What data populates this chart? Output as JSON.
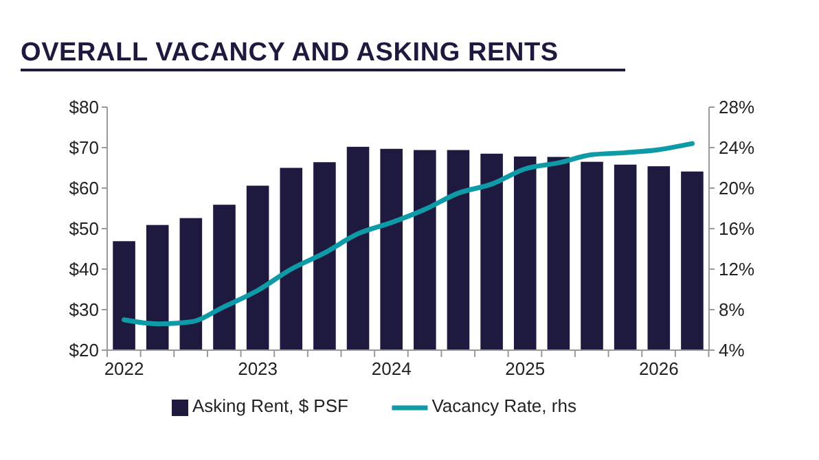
{
  "chart_data": {
    "type": "bar",
    "title": "OVERALL VACANCY AND ASKING RENTS",
    "categories": [
      "2022",
      null,
      null,
      null,
      "2023",
      null,
      null,
      null,
      "2024",
      null,
      null,
      null,
      "2025",
      null,
      null,
      null,
      "2026",
      null
    ],
    "series": [
      {
        "name": "Asking Rent, $ PSF",
        "color": "#1e1a3f",
        "values": [
          46.9,
          50.9,
          52.6,
          55.9,
          60.6,
          65,
          66.4,
          70.2,
          69.7,
          69.4,
          69.4,
          68.5,
          67.8,
          67.7,
          66.5,
          65.8,
          65.4,
          64.1
        ]
      },
      {
        "name": "Vacancy Rate, rhs",
        "type": "line",
        "axis": "y2",
        "color": "#0e9aa7",
        "values": [
          7.0,
          6.6,
          6.8,
          8.3,
          9.9,
          12.0,
          13.6,
          15.5,
          16.6,
          17.9,
          19.5,
          20.4,
          21.9,
          22.5,
          23.3,
          23.5,
          23.8,
          24.4
        ]
      }
    ],
    "ylim": [
      20,
      80
    ],
    "yticks": [
      {
        "value": 20,
        "label": "$20"
      },
      {
        "value": 30,
        "label": "$30"
      },
      {
        "value": 40,
        "label": "$40"
      },
      {
        "value": 50,
        "label": "$50"
      },
      {
        "value": 60,
        "label": "$60"
      },
      {
        "value": 70,
        "label": "$70"
      },
      {
        "value": 80,
        "label": "$80"
      }
    ],
    "y2lim": [
      4,
      28
    ],
    "y2ticks": [
      {
        "value": 4,
        "label": "4%"
      },
      {
        "value": 8,
        "label": "8%"
      },
      {
        "value": 12,
        "label": "12%"
      },
      {
        "value": 16,
        "label": "16%"
      },
      {
        "value": 20,
        "label": "20%"
      },
      {
        "value": 24,
        "label": "24%"
      },
      {
        "value": 28,
        "label": "28%"
      }
    ],
    "grid": false,
    "legend": "bottom",
    "marker": "none",
    "line_style": "solid"
  }
}
